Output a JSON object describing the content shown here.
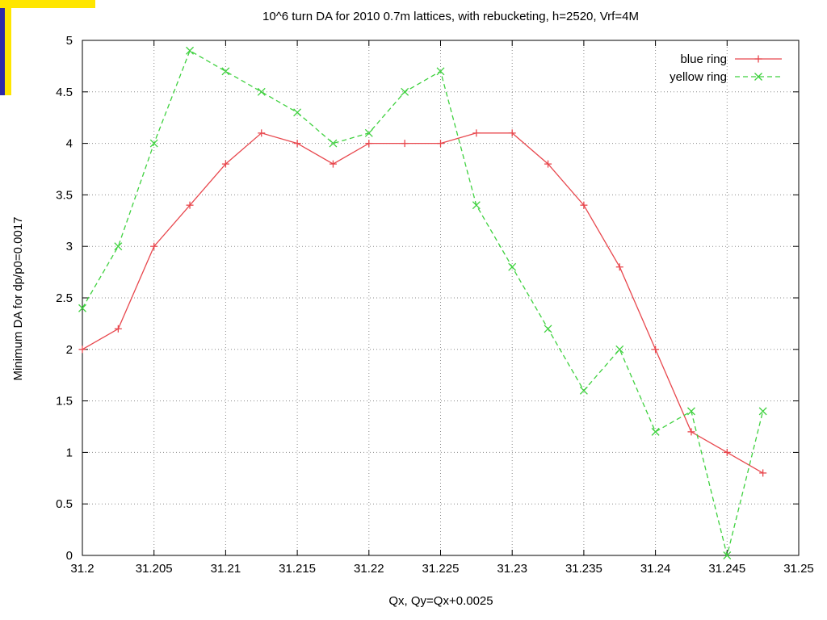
{
  "chart_data": {
    "type": "line",
    "title": "10^6 turn DA for 2010 0.7m lattices, with rebucketing, h=2520, Vrf=4M",
    "xlabel": "Qx, Qy=Qx+0.0025",
    "ylabel": "Minimum DA for dp/p0=0.0017",
    "xlim": [
      31.2,
      31.25
    ],
    "ylim": [
      0,
      5
    ],
    "x_ticks": [
      31.2,
      31.205,
      31.21,
      31.215,
      31.22,
      31.225,
      31.23,
      31.235,
      31.24,
      31.245,
      31.25
    ],
    "x_tick_labels": [
      "31.2",
      "31.205",
      "31.21",
      "31.215",
      "31.22",
      "31.225",
      "31.23",
      "31.235",
      "31.24",
      "31.245",
      "31.25"
    ],
    "y_ticks": [
      0,
      0.5,
      1,
      1.5,
      2,
      2.5,
      3,
      3.5,
      4,
      4.5,
      5
    ],
    "y_tick_labels": [
      "0",
      "0.5",
      "1",
      "1.5",
      "2",
      "2.5",
      "3",
      "3.5",
      "4",
      "4.5",
      "5"
    ],
    "grid": true,
    "legend_position": "top-right",
    "series": [
      {
        "name": "blue ring",
        "color": "#e8474d",
        "line_style": "solid",
        "marker": "plus",
        "x": [
          31.2,
          31.2025,
          31.205,
          31.2075,
          31.21,
          31.2125,
          31.215,
          31.2175,
          31.22,
          31.2225,
          31.225,
          31.2275,
          31.23,
          31.2325,
          31.235,
          31.2375,
          31.24,
          31.2425,
          31.245,
          31.2475
        ],
        "y": [
          2.0,
          2.2,
          3.0,
          3.4,
          3.8,
          4.1,
          4.0,
          3.8,
          4.0,
          4.0,
          4.0,
          4.1,
          4.1,
          3.8,
          3.4,
          2.8,
          2.0,
          1.2,
          1.0,
          0.8
        ]
      },
      {
        "name": "yellow ring",
        "color": "#3fd13f",
        "line_style": "dashed",
        "marker": "cross",
        "x": [
          31.2,
          31.2025,
          31.205,
          31.2075,
          31.21,
          31.2125,
          31.215,
          31.2175,
          31.22,
          31.2225,
          31.225,
          31.2275,
          31.23,
          31.2325,
          31.235,
          31.2375,
          31.24,
          31.2425,
          31.245,
          31.2475
        ],
        "y": [
          2.4,
          3.0,
          4.0,
          4.9,
          4.7,
          4.5,
          4.3,
          4.0,
          4.1,
          4.5,
          4.7,
          3.4,
          2.8,
          2.2,
          1.6,
          2.0,
          1.2,
          1.4,
          0.0,
          1.4
        ]
      }
    ]
  },
  "decoration": {
    "corner_fill": "#ffe600",
    "corner_bar": "#2e2aa8"
  }
}
